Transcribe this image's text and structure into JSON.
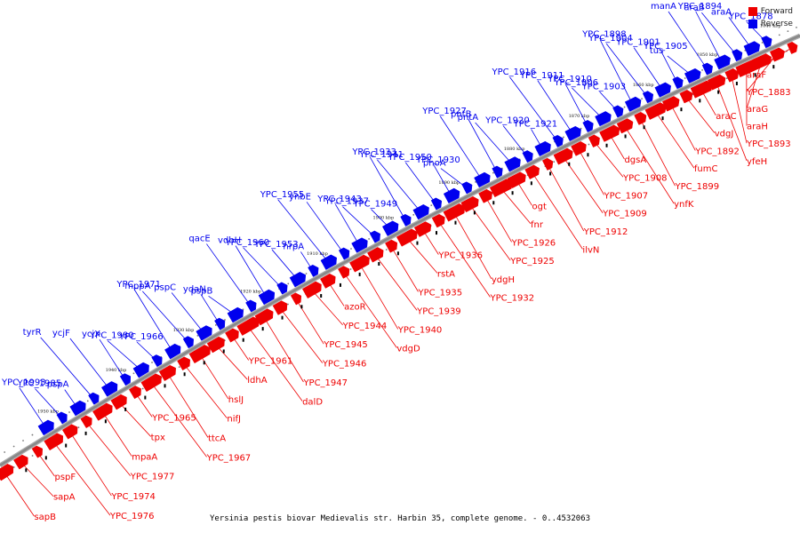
{
  "caption": "Yersinia pestis biovar Medievalis str. Harbin 35, complete genome. - 0..4532063",
  "legend": {
    "forward_label": "Forward",
    "reverse_label": "Reverse",
    "forward_color": "#ee0000",
    "reverse_color": "#0000ee"
  },
  "colors": {
    "forward": "#ee0000",
    "reverse": "#0000ee",
    "backbone": "#888888"
  },
  "kbp_labels": [
    "1840 kbp",
    "1850 kbp",
    "1860 kbp",
    "1870 kbp",
    "1880 kbp",
    "1890 kbp",
    "1900 kbp",
    "1910 kbp",
    "1920 kbp",
    "1930 kbp",
    "1940 kbp",
    "1950 kbp"
  ],
  "reverse_genes": [
    "YPC_1878",
    "araA",
    "araB",
    "YPC_1894",
    "manA",
    "tus",
    "YPC_1905",
    "YPC_1901",
    "YPC_1904",
    "YPC_1898",
    "YPC_1903",
    "YPC_1906",
    "YPC_1910",
    "YPC_1911",
    "YPC_1916",
    "YPC_1921",
    "YPC_1920",
    "pntA",
    "pntB",
    "YPC_1927",
    "phoA",
    "YPC_1930",
    "YPC_1950",
    "YPC_1941",
    "YPC_1933",
    "YPC_1949",
    "YPC_1937",
    "YPC_1943",
    "ynbE",
    "YPC_1955",
    "hrpA",
    "YPC_1953",
    "YPC_1960",
    "vdbH",
    "qacE",
    "pspB",
    "ydaN",
    "pspC",
    "mppA",
    "YPC_1971",
    "YPC_1966",
    "YPC_1980",
    "ycjX",
    "ycjF",
    "tyrR",
    "pspA",
    "YPC_1985",
    "YPC_1993"
  ],
  "forward_genes": [
    "araF",
    "YPC_1883",
    "araG",
    "araH",
    "YPC_1893",
    "yfeH",
    "araC",
    "vdgJ",
    "YPC_1892",
    "fumC",
    "YPC_1899",
    "ynfK",
    "dgsA",
    "YPC_1908",
    "YPC_1907",
    "YPC_1909",
    "YPC_1912",
    "ilvN",
    "ogt",
    "fnr",
    "YPC_1926",
    "YPC_1925",
    "ydgH",
    "YPC_1932",
    "YPC_1936",
    "rstA",
    "YPC_1935",
    "YPC_1939",
    "YPC_1940",
    "vdgD",
    "azoR",
    "YPC_1944",
    "YPC_1945",
    "YPC_1946",
    "YPC_1947",
    "dalD",
    "YPC_1961",
    "ldhA",
    "hslJ",
    "nifJ",
    "ttcA",
    "YPC_1967",
    "YPC_1965",
    "tpx",
    "mpaA",
    "YPC_1977",
    "YPC_1974",
    "YPC_1976",
    "pspF",
    "sapA",
    "sapB"
  ]
}
